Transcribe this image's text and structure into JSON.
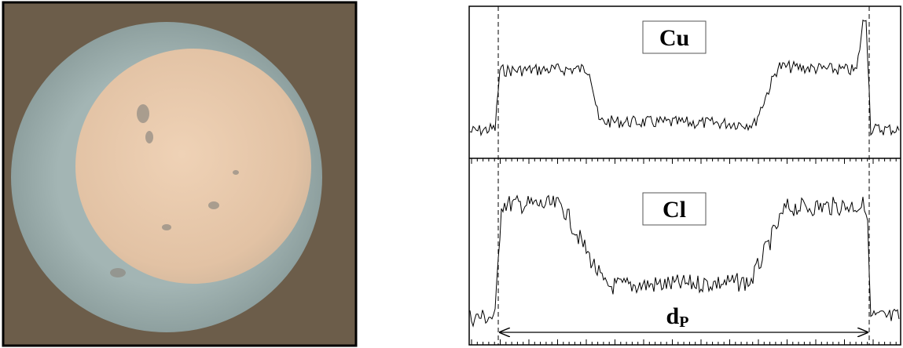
{
  "panels": {
    "profile_top_label": "Cu",
    "profile_bottom_label": "Cl",
    "distance_label": "d",
    "distance_subscript": "P"
  }
}
